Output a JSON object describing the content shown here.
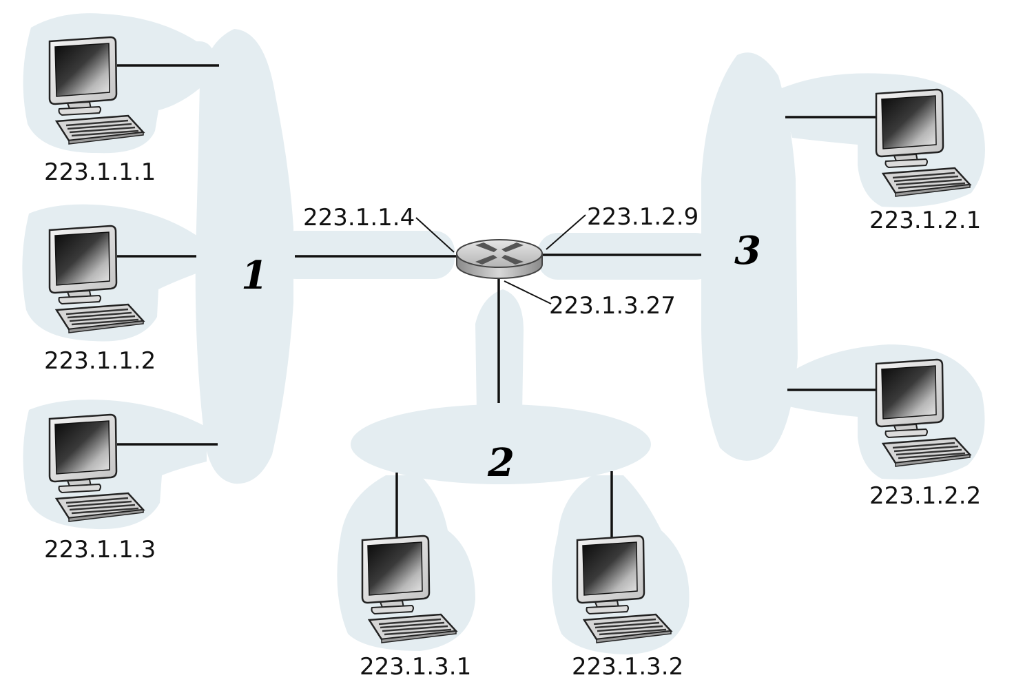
{
  "subnets": [
    {
      "label": "1"
    },
    {
      "label": "2"
    },
    {
      "label": "3"
    }
  ],
  "hosts": [
    {
      "ip": "223.1.1.1",
      "subnet": "1"
    },
    {
      "ip": "223.1.1.2",
      "subnet": "1"
    },
    {
      "ip": "223.1.1.3",
      "subnet": "1"
    },
    {
      "ip": "223.1.3.1",
      "subnet": "2"
    },
    {
      "ip": "223.1.3.2",
      "subnet": "2"
    },
    {
      "ip": "223.1.2.1",
      "subnet": "3"
    },
    {
      "ip": "223.1.2.2",
      "subnet": "3"
    }
  ],
  "router": {
    "icon": "router-icon",
    "interfaces": [
      {
        "ip": "223.1.1.4",
        "subnet": "1"
      },
      {
        "ip": "223.1.2.9",
        "subnet": "3"
      },
      {
        "ip": "223.1.3.27",
        "subnet": "2"
      }
    ]
  },
  "colors": {
    "subnet_fill": "#e4edf1",
    "line": "#111111"
  }
}
